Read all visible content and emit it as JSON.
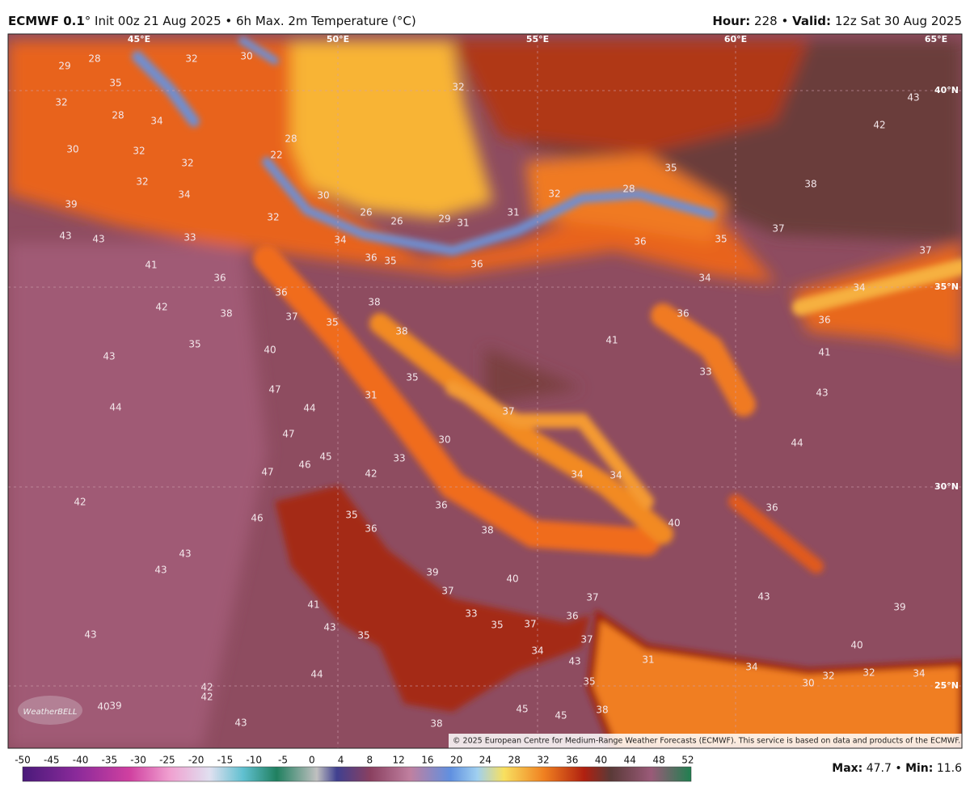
{
  "header": {
    "model": "ECMWF 0.1",
    "title_rest": "° Init 00z 21 Aug 2025 • 6h Max. 2m Temperature (°C)",
    "hour_label": "Hour:",
    "hour": "228",
    "separator": "•",
    "valid_label": "Valid:",
    "valid": "12z Sat 30 Aug 2025"
  },
  "map": {
    "lon_labels": [
      "45°E",
      "50°E",
      "55°E",
      "60°E",
      "65°E"
    ],
    "lat_labels": [
      "40°N",
      "35°N",
      "30°N",
      "25°N"
    ],
    "labels": [
      29,
      28,
      32,
      30,
      35,
      32,
      28,
      34,
      30,
      32,
      32,
      32,
      34,
      22,
      28,
      32,
      30,
      26,
      26,
      29,
      31,
      31,
      32,
      28,
      35,
      38,
      42,
      43,
      37,
      37,
      35,
      36,
      34,
      34,
      36,
      41,
      43,
      44,
      36,
      40,
      43,
      39,
      40,
      34,
      30,
      32,
      32,
      34,
      31,
      36,
      41,
      33,
      37,
      34,
      34,
      36,
      35,
      36,
      34,
      32,
      39,
      43,
      43,
      33,
      41,
      36,
      36,
      37,
      38,
      35,
      38,
      38,
      42,
      35,
      40,
      43,
      35,
      31,
      47,
      44,
      44,
      47,
      30,
      33,
      45,
      46,
      47,
      42,
      42,
      46,
      35,
      36,
      36,
      38,
      43,
      43,
      39,
      37,
      40,
      41,
      33,
      35,
      37,
      36,
      37,
      43,
      35,
      34,
      37,
      43,
      43,
      44,
      35,
      42,
      42,
      40,
      39,
      43,
      38,
      45,
      45,
      38
    ],
    "copyright": "© 2025 European Centre for Medium-Range Weather Forecasts (ECMWF). This service is based on data and products of the ECMWF.",
    "logo": "WeatherBELL"
  },
  "colorbar": {
    "ticks": [
      -50,
      -45,
      -40,
      -35,
      -30,
      -25,
      -20,
      -15,
      -10,
      -5,
      0,
      4,
      8,
      12,
      16,
      20,
      24,
      28,
      32,
      36,
      40,
      44,
      48,
      52
    ]
  },
  "footer": {
    "max_label": "Max:",
    "max": "47.7",
    "separator": "•",
    "min_label": "Min:",
    "min": "11.6"
  }
}
